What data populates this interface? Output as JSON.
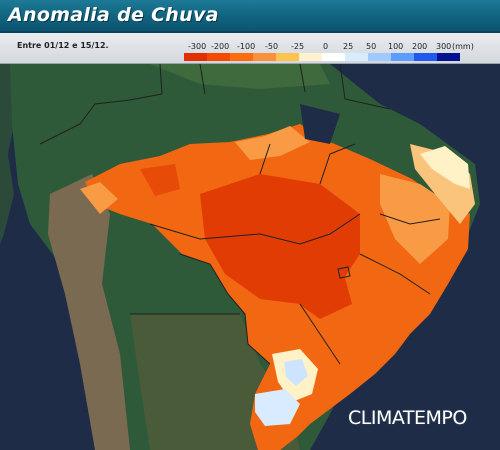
{
  "header": {
    "title": "Anomalia de Chuva"
  },
  "legend": {
    "period": "Entre 01/12 e 15/12.",
    "ticks": [
      "-300",
      "-200",
      "-100",
      "-50",
      "-25",
      "0",
      "25",
      "50",
      "100",
      "200",
      "300"
    ],
    "unit": "(mm)",
    "colors": [
      "#e03000",
      "#f24a00",
      "#fb6c11",
      "#f9913a",
      "#ffc24c",
      "#fff3cf",
      "#ffffff",
      "#d8ecff",
      "#9fc9ff",
      "#5e9cff",
      "#2058f0",
      "#061390"
    ]
  },
  "map": {
    "region": "Brasil",
    "anomaly_classes": {
      "strong_deficit": "#e03a05",
      "deficit": "#f46d12",
      "moderate_deficit": "#f98e37",
      "slight_deficit": "#fbb36c",
      "near_normal": "#fff2c6",
      "surplus": "#cde4ff"
    }
  },
  "brand": {
    "name": "CLIMATEMPO"
  }
}
